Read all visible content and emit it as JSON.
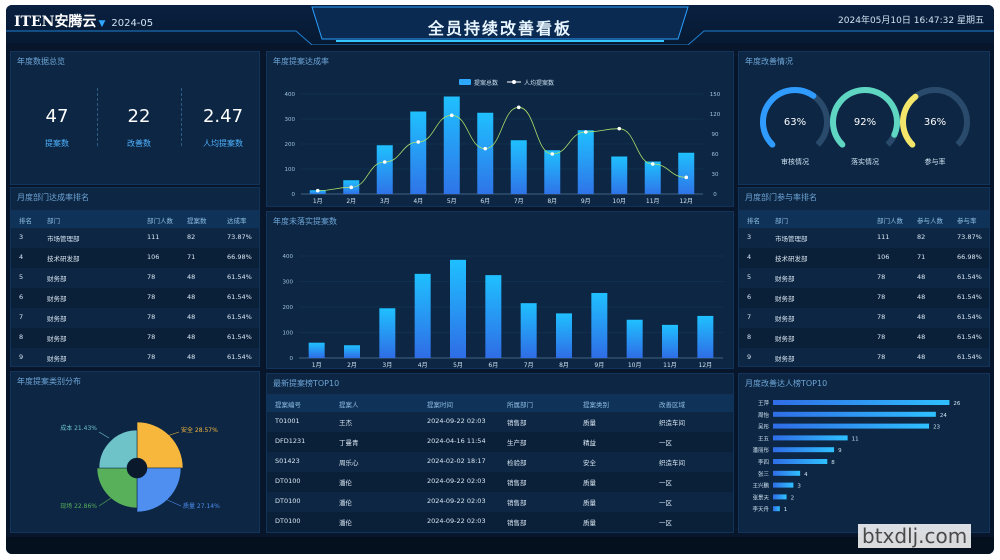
{
  "header": {
    "logo_en": "ITEN",
    "logo_cn": "安腾云",
    "date_select": "2024-05",
    "title": "全员持续改善看板",
    "clock": "2024年05月10日 16:47:32 星期五"
  },
  "overview": {
    "title": "年度数据总览",
    "kpis": [
      {
        "value": "47",
        "label": "提案数"
      },
      {
        "value": "22",
        "label": "改善数"
      },
      {
        "value": "2.47",
        "label": "人均提案数"
      }
    ]
  },
  "dept_rate": {
    "title": "月度部门达成率排名",
    "columns": [
      "排名",
      "部门",
      "部门人数",
      "提案数",
      "达成率"
    ],
    "rows": [
      [
        "3",
        "市场管理部",
        "111",
        "82",
        "73.87%"
      ],
      [
        "4",
        "技术研发部",
        "106",
        "71",
        "66.98%"
      ],
      [
        "5",
        "财务部",
        "78",
        "48",
        "61.54%"
      ],
      [
        "6",
        "财务部",
        "78",
        "48",
        "61.54%"
      ],
      [
        "7",
        "财务部",
        "78",
        "48",
        "61.54%"
      ],
      [
        "8",
        "财务部",
        "78",
        "48",
        "61.54%"
      ],
      [
        "9",
        "财务部",
        "78",
        "48",
        "61.54%"
      ]
    ]
  },
  "proposal_types": {
    "title": "年度提案类别分布",
    "chart_data": {
      "type": "pie",
      "categories": [
        "安全",
        "质量",
        "现场",
        "成本"
      ],
      "values": [
        28.57,
        27.14,
        22.86,
        21.43
      ],
      "labels": [
        "安全 28.57%",
        "质量 27.14%",
        "现场 22.86%",
        "成本 21.43%"
      ],
      "colors": [
        "#f6b73c",
        "#4e8ff0",
        "#58b05a",
        "#6ec3c9"
      ]
    }
  },
  "monthly_proposals": {
    "title": "年度提案达成率",
    "chart_data": {
      "type": "bar",
      "categories": [
        "1月",
        "2月",
        "3月",
        "4月",
        "5月",
        "6月",
        "7月",
        "8月",
        "9月",
        "10月",
        "11月",
        "12月"
      ],
      "series": [
        {
          "name": "提案总数",
          "type": "bar",
          "axis": "left",
          "values": [
            15,
            55,
            195,
            330,
            390,
            325,
            215,
            175,
            255,
            150,
            130,
            165
          ]
        },
        {
          "name": "人均提案数",
          "type": "line",
          "axis": "right",
          "values": [
            5,
            10,
            48,
            78,
            118,
            68,
            130,
            60,
            93,
            98,
            45,
            25
          ]
        }
      ],
      "ylim": [
        0,
        400
      ],
      "yticks": [
        "0",
        "100",
        "200",
        "300",
        "400"
      ],
      "y2lim": [
        0,
        150
      ],
      "y2ticks": [
        "0",
        "30",
        "60",
        "90",
        "120",
        "150"
      ],
      "legend": "top-center"
    }
  },
  "monthly_improvements": {
    "title": "年度未落实提案数",
    "chart_data": {
      "type": "bar",
      "categories": [
        "1月",
        "2月",
        "3月",
        "4月",
        "5月",
        "6月",
        "7月",
        "8月",
        "9月",
        "10月",
        "11月",
        "12月"
      ],
      "values": [
        60,
        50,
        195,
        330,
        385,
        325,
        215,
        175,
        255,
        150,
        130,
        165
      ],
      "ylim": [
        0,
        400
      ],
      "yticks": [
        "0",
        "100",
        "200",
        "300",
        "400"
      ]
    }
  },
  "latest_top10": {
    "title": "最新提案榜TOP10",
    "columns": [
      "提案编号",
      "提案人",
      "提案时间",
      "所属部门",
      "提案类别",
      "改善区域"
    ],
    "rows": [
      [
        "T01001",
        "王杰",
        "2024-09-22 02:03",
        "销售部",
        "质量",
        "织造车间"
      ],
      [
        "DFD1231",
        "丁曼青",
        "2024-04-16 11:54",
        "生产部",
        "精益",
        "一区"
      ],
      [
        "S01423",
        "周乐心",
        "2024-02-02 18:17",
        "检验部",
        "安全",
        "织造车间"
      ],
      [
        "DT0100",
        "潘伦",
        "2024-09-22 02:03",
        "销售部",
        "质量",
        "一区"
      ],
      [
        "DT0100",
        "潘伦",
        "2024-09-22 02:03",
        "销售部",
        "质量",
        "一区"
      ],
      [
        "DT0100",
        "潘伦",
        "2024-09-22 02:03",
        "销售部",
        "质量",
        "一区"
      ]
    ]
  },
  "improvement_status": {
    "title": "年度改善情况",
    "gauges": [
      {
        "value": 63,
        "label": "63%",
        "name": "审核情况",
        "color": "#2f9bff"
      },
      {
        "value": 92,
        "label": "92%",
        "name": "落实情况",
        "color": "#5fd6c2"
      },
      {
        "value": 36,
        "label": "36%",
        "name": "参与率",
        "color": "#f3e66a"
      }
    ]
  },
  "dept_participation": {
    "title": "月度部门参与率排名",
    "columns": [
      "排名",
      "部门",
      "部门人数",
      "参与人数",
      "参与率"
    ],
    "rows": [
      [
        "3",
        "市场管理部",
        "111",
        "82",
        "73.87%"
      ],
      [
        "4",
        "技术研发部",
        "106",
        "71",
        "66.98%"
      ],
      [
        "5",
        "财务部",
        "78",
        "48",
        "61.54%"
      ],
      [
        "6",
        "财务部",
        "78",
        "48",
        "61.54%"
      ],
      [
        "7",
        "财务部",
        "78",
        "48",
        "61.54%"
      ],
      [
        "8",
        "财务部",
        "78",
        "48",
        "61.54%"
      ],
      [
        "9",
        "财务部",
        "78",
        "48",
        "61.54%"
      ]
    ]
  },
  "top10_people": {
    "title": "月度改善达人榜TOP10",
    "chart_data": {
      "type": "bar",
      "orientation": "horizontal",
      "categories": [
        "王萍",
        "周怡",
        "吴彤",
        "王五",
        "潘丽彤",
        "李四",
        "张三",
        "王兴鹏",
        "张景天",
        "李天舟"
      ],
      "values": [
        26,
        24,
        23,
        11,
        9,
        8,
        4,
        3,
        2,
        1
      ],
      "xlim": [
        0,
        28
      ]
    }
  },
  "watermark": "btxdlj.com"
}
